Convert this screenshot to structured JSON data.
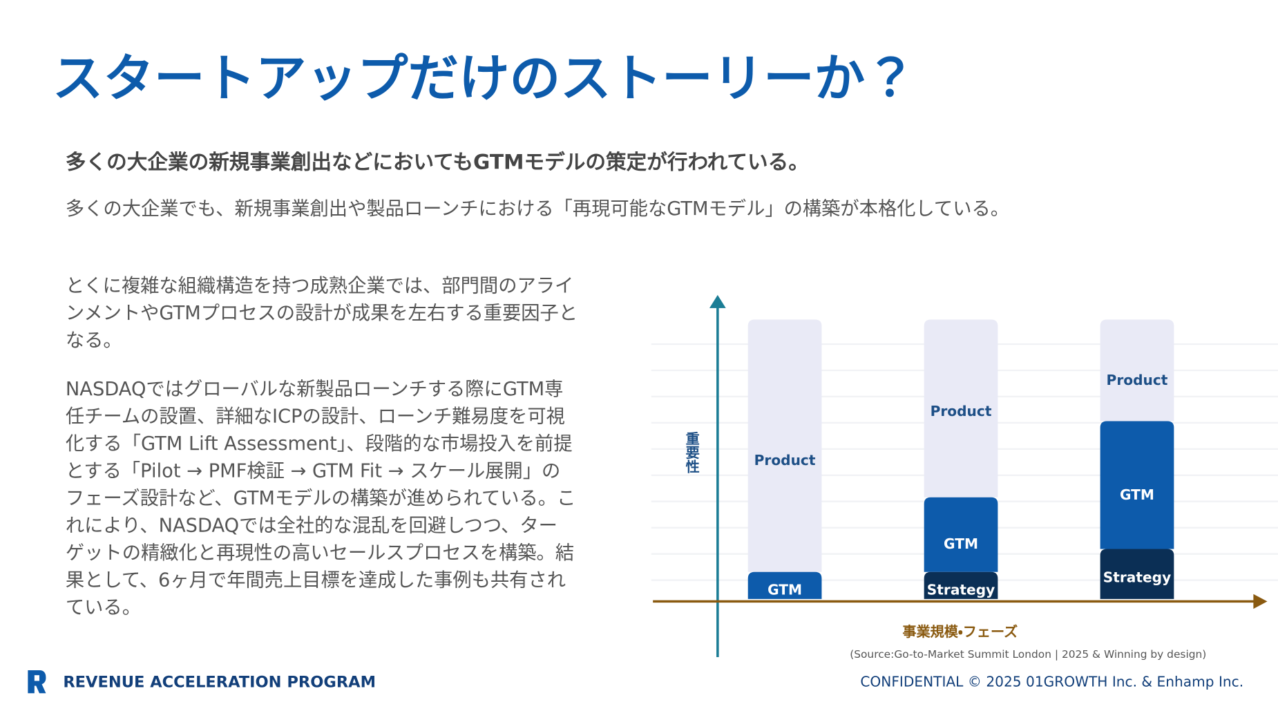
{
  "header": {
    "title": "スタートアップだけのストーリーか？"
  },
  "subtitle": "多くの大企業の新規事業創出などにおいてもGTMモデルの策定が行われている。",
  "lead": "多くの大企業でも、新規事業創出や製品ローンチにおける「再現可能なGTMモデル」の構築が本格化している。",
  "body": {
    "paragraph1": [
      "とくに複雑な組織構造を持つ成熟企業では、部門間のアライ",
      "ンメントやGTMプロセスの設計が成果を左右する重要因子と",
      "なる。"
    ],
    "paragraph2": [
      "NASDAQではグローバルな新製品ローンチする際にGTM専",
      "任チームの設置、詳細なICPの設計、ローンチ難易度を可視",
      "化する「GTM Lift Assessment」、段階的な市場投入を前提",
      "とする「Pilot → PMF検証 → GTM Fit → スケール展開」の",
      "フェーズ設計など、GTMモデルの構築が進められている。こ",
      "れにより、NASDAQでは全社的な混乱を回避しつつ、ター",
      "ゲットの精緻化と再現性の高いセールスプロセスを構築。結",
      "果として、6ヶ月で年間売上目標を達成した事例も共有され",
      "ている。"
    ]
  },
  "diagram": {
    "y_axis_label": "重要性",
    "x_axis_label": "事業規模・フェーズ",
    "columns": [
      {
        "segments": [
          "Product",
          "GTM"
        ]
      },
      {
        "segments": [
          "Product",
          "GTM",
          "Strategy"
        ]
      },
      {
        "segments": [
          "Product",
          "GTM",
          "Strategy"
        ]
      }
    ],
    "source": "(Source:Go-to-Market Summit London | 2025 & Winning by design)"
  },
  "footer": {
    "program": "REVENUE ACCELERATION PROGRAM",
    "confidential": "CONFIDENTIAL © 2025 01GROWTH Inc. & Enhamp Inc."
  }
}
